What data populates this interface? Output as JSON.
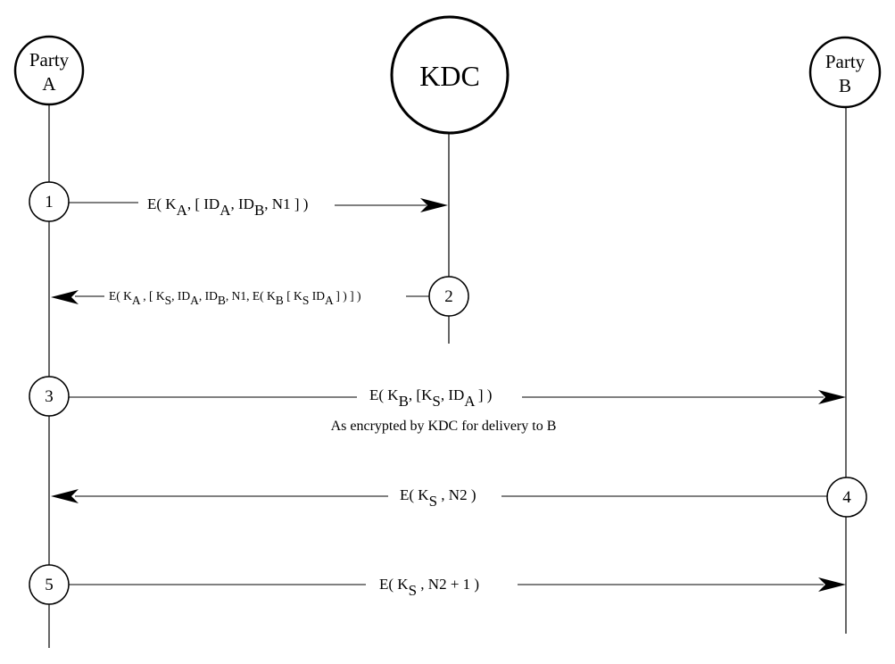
{
  "parties": [
    {
      "id": "party-a",
      "line1": "Party",
      "line2": "A"
    },
    {
      "id": "kdc",
      "line1": "KDC"
    },
    {
      "id": "party-b",
      "line1": "Party",
      "line2": "B"
    }
  ],
  "steps": [
    {
      "num": "1"
    },
    {
      "num": "2"
    },
    {
      "num": "3"
    },
    {
      "num": "4"
    },
    {
      "num": "5"
    }
  ],
  "messages": [
    {
      "id": "msg1",
      "parts": [
        {
          "t": "E( K"
        },
        {
          "t": "A",
          "sub": true
        },
        {
          "t": ",  [ ID"
        },
        {
          "t": "A",
          "sub": true
        },
        {
          "t": ", ID"
        },
        {
          "t": "B",
          "sub": true
        },
        {
          "t": ",  N1 ] )"
        }
      ]
    },
    {
      "id": "msg2",
      "parts": [
        {
          "t": "E( K"
        },
        {
          "t": "A",
          "sub": true
        },
        {
          "t": " ,  [ K"
        },
        {
          "t": "S",
          "sub": true
        },
        {
          "t": ", ID"
        },
        {
          "t": "A",
          "sub": true
        },
        {
          "t": ",  ID"
        },
        {
          "t": "B",
          "sub": true
        },
        {
          "t": ", N1,  E( K"
        },
        {
          "t": "B",
          "sub": true
        },
        {
          "t": "  [ K"
        },
        {
          "t": "S",
          "sub": true
        },
        {
          "t": " ID"
        },
        {
          "t": "A",
          "sub": true
        },
        {
          "t": " ] ) ] )"
        }
      ]
    },
    {
      "id": "msg3",
      "parts": [
        {
          "t": "E( K"
        },
        {
          "t": "B",
          "sub": true
        },
        {
          "t": ",  [K"
        },
        {
          "t": "S",
          "sub": true
        },
        {
          "t": ",  ID"
        },
        {
          "t": "A",
          "sub": true
        },
        {
          "t": " ] )"
        }
      ],
      "note": "As encrypted by KDC for delivery to B"
    },
    {
      "id": "msg4",
      "parts": [
        {
          "t": "E( K"
        },
        {
          "t": "S",
          "sub": true
        },
        {
          "t": " ,  N2  )"
        }
      ]
    },
    {
      "id": "msg5",
      "parts": [
        {
          "t": "E( K"
        },
        {
          "t": "S",
          "sub": true
        },
        {
          "t": " ,   N2  +  1  )"
        }
      ]
    }
  ]
}
